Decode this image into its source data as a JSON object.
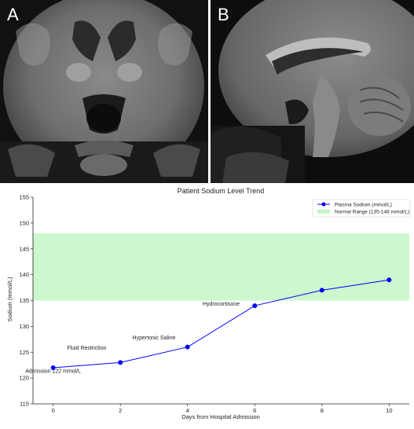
{
  "figure": {
    "panel_a_label": "A",
    "panel_b_label": "B"
  },
  "chart_data": {
    "type": "line",
    "title": "Patient Sodium Level Trend",
    "xlabel": "Days from Hospital Admission",
    "ylabel": "Sodium (mmol/L)",
    "xlim": [
      -0.6,
      10.6
    ],
    "ylim": [
      115,
      155
    ],
    "x_ticks": [
      0,
      2,
      4,
      6,
      8,
      10
    ],
    "y_ticks": [
      115,
      120,
      125,
      130,
      135,
      140,
      145,
      150,
      155
    ],
    "grid": false,
    "legend_position": "top-right",
    "series": [
      {
        "name": "Plasma Sodium (mmol/L)",
        "color": "#0000ff",
        "x": [
          0,
          2,
          4,
          6,
          8,
          10
        ],
        "y": [
          122,
          123,
          126,
          134,
          137,
          139
        ]
      }
    ],
    "band": {
      "name": "Normal Range (135-148 mmol/L)",
      "low": 135,
      "high": 148,
      "color": "#90ee90"
    },
    "annotations": [
      {
        "text": "Admission 122 mmol/L",
        "x": 0,
        "y": 121
      },
      {
        "text": "Fluid Restriction",
        "x": 1,
        "y": 125.5
      },
      {
        "text": "Hypertonic Saline",
        "x": 3,
        "y": 127.5
      },
      {
        "text": "Hydrocortisone",
        "x": 5,
        "y": 134
      }
    ]
  }
}
